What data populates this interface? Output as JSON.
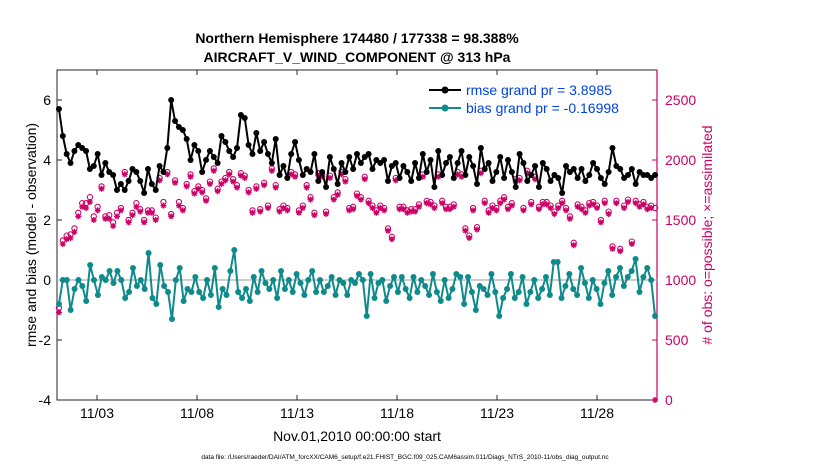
{
  "chart_data": {
    "type": "line",
    "title": "Northern Hemisphere 174480 / 177338 = 98.388%",
    "subtitle": "AIRCRAFT_V_WIND_COMPONENT @ 313 hPa",
    "xlabel": "Nov.01,2010 00:00:00 start",
    "ylabel_left": "rmse and bias (model - observation)",
    "ylabel_right": "# of obs: o=possible; ×=assimilated",
    "footer": "data file: /Users/raeder/DAI/ATM_forcXX/CAM6_setup/f.e21.FHIST_BGC.f09_025.CAM6assim.011/Diags_NTrS_2010-11/obs_diag_output.nc",
    "x_tick_labels": [
      "11/03",
      "11/08",
      "11/13",
      "11/18",
      "11/23",
      "11/28"
    ],
    "y_left_tick_labels": [
      "-4",
      "-2",
      "0",
      "2",
      "4",
      "6"
    ],
    "y_right_tick_labels": [
      "0",
      "500",
      "1000",
      "1500",
      "2000",
      "2500"
    ],
    "xlim_days": [
      0,
      30
    ],
    "ylim_left": [
      -4,
      7
    ],
    "ylim_right": [
      0,
      2750
    ],
    "legend_location": "top-right",
    "series": [
      {
        "name": "rmse grand pr = 3.8985",
        "color": "#000000",
        "axis": "left",
        "values": [
          5.7,
          4.8,
          4.2,
          3.9,
          4.3,
          4.5,
          4.4,
          4.3,
          3.7,
          3.8,
          4.2,
          3.5,
          3.9,
          3.6,
          3.5,
          3.0,
          3.2,
          3.0,
          3.3,
          3.7,
          3.6,
          3.3,
          2.9,
          3.7,
          3.2,
          3.0,
          3.8,
          3.6,
          4.4,
          6.0,
          5.3,
          5.1,
          5.0,
          4.7,
          4.0,
          4.5,
          4.3,
          3.6,
          4.0,
          4.3,
          4.1,
          3.9,
          4.8,
          4.6,
          4.3,
          4.1,
          4.4,
          5.5,
          5.4,
          4.5,
          4.2,
          4.9,
          4.3,
          4.6,
          4.2,
          3.9,
          4.7,
          3.5,
          3.8,
          3.4,
          4.2,
          4.6,
          4.0,
          3.5,
          3.7,
          3.6,
          4.2,
          3.3,
          3.6,
          3.1,
          4.1,
          3.7,
          3.2,
          3.9,
          3.6,
          4.1,
          3.7,
          4.2,
          3.9,
          4.1,
          4.2,
          3.7,
          4.0,
          3.9,
          4.0,
          3.3,
          3.8,
          3.9,
          3.4,
          3.8,
          3.6,
          3.3,
          3.9,
          3.4,
          4.2,
          3.6,
          4.0,
          3.1,
          4.3,
          3.5,
          3.9,
          4.1,
          3.4,
          3.9,
          4.3,
          3.5,
          4.1,
          3.8,
          3.2,
          4.4,
          3.7,
          3.9,
          3.3,
          3.6,
          4.1,
          3.4,
          4.0,
          3.6,
          3.1,
          4.2,
          3.9,
          3.3,
          3.5,
          3.8,
          3.1,
          3.9,
          3.7,
          3.3,
          3.5,
          3.4,
          2.9,
          3.8,
          3.6,
          3.7,
          3.4,
          3.7,
          3.3,
          3.5,
          3.9,
          3.7,
          3.4,
          3.2,
          3.6,
          4.4,
          3.8,
          3.7,
          3.4,
          3.5,
          3.7,
          3.2,
          3.6,
          3.5,
          3.5,
          3.4,
          3.5
        ]
      },
      {
        "name": "bias grand pr = -0.16998",
        "color": "#0f8a8a",
        "axis": "left",
        "values": [
          -0.8,
          0.0,
          0.0,
          -1.0,
          -0.3,
          0.0,
          -0.2,
          -0.7,
          0.5,
          0.0,
          -0.5,
          0.1,
          0.0,
          0.3,
          -0.1,
          0.3,
          0.0,
          -0.6,
          -0.4,
          0.4,
          -0.2,
          0.0,
          -0.3,
          0.9,
          -0.6,
          -0.8,
          0.5,
          -0.2,
          -0.4,
          -1.3,
          0.0,
          0.4,
          -0.7,
          -0.3,
          -0.4,
          0.1,
          -0.4,
          -0.6,
          0.0,
          -0.5,
          0.4,
          -0.9,
          -0.3,
          -0.5,
          0.3,
          1.0,
          -0.4,
          -0.6,
          -0.3,
          -0.7,
          0.1,
          -0.4,
          0.3,
          -0.1,
          -0.3,
          0.0,
          -0.6,
          0.3,
          -0.3,
          0.0,
          -0.4,
          0.2,
          -0.1,
          -0.5,
          0.0,
          0.3,
          -0.4,
          0.0,
          -0.4,
          -0.2,
          0.1,
          -0.5,
          0.0,
          -0.1,
          -0.5,
          0.0,
          -0.1,
          0.2,
          0.0,
          -1.2,
          0.2,
          -0.6,
          -0.1,
          0.0,
          -0.7,
          -0.2,
          0.1,
          -0.4,
          0.1,
          -0.3,
          -0.6,
          0.1,
          -0.4,
          0.0,
          -0.2,
          -0.5,
          0.2,
          -0.4,
          -0.7,
          0.0,
          -0.6,
          -0.3,
          0.2,
          0.1,
          -0.8,
          0.1,
          -0.4,
          -1.0,
          -0.2,
          -0.3,
          -0.5,
          0.2,
          -0.4,
          -1.2,
          -0.6,
          -0.3,
          0.2,
          -0.6,
          -0.4,
          0.1,
          -0.8,
          -0.4,
          0.0,
          -0.6,
          -0.3,
          0.1,
          -0.5,
          0.6,
          0.6,
          -0.6,
          -0.2,
          0.2,
          -0.3,
          -0.5,
          0.4,
          -0.1,
          -0.6,
          0.0,
          -0.3,
          -0.8,
          -0.1,
          0.3,
          -0.5,
          0.1,
          0.4,
          -0.2,
          0.1,
          0.3,
          0.7,
          -0.4,
          0.1,
          0.4,
          0.0,
          -1.2
        ]
      },
      {
        "name": "# of obs possible",
        "color": "#cc0066",
        "axis": "right",
        "marker": "o",
        "values": [
          770,
          1330,
          1370,
          1380,
          1430,
          1560,
          1640,
          1640,
          1690,
          1530,
          1610,
          1780,
          1530,
          1540,
          1480,
          1560,
          1600,
          1900,
          1500,
          1560,
          1640,
          1590,
          1500,
          1580,
          1580,
          1520,
          1850,
          1650,
          1900,
          1550,
          1830,
          1650,
          1600,
          1800,
          1880,
          1740,
          1780,
          1750,
          1680,
          1820,
          1930,
          1760,
          1820,
          1850,
          1900,
          1840,
          1790,
          1890,
          1870,
          1750,
          1580,
          1780,
          1590,
          1810,
          1620,
          1930,
          1790,
          1590,
          1620,
          1600,
          1900,
          1880,
          1580,
          1620,
          1790,
          1690,
          1560,
          1890,
          1880,
          1570,
          1870,
          1690,
          1730,
          1900,
          1840,
          1600,
          1610,
          1720,
          1690,
          1860,
          1660,
          1620,
          1580,
          1620,
          1600,
          1430,
          1360,
          1850,
          1610,
          1610,
          1580,
          1590,
          1590,
          1630,
          1880,
          1660,
          1650,
          1620,
          1880,
          1660,
          1610,
          1610,
          1630,
          1900,
          1880,
          1430,
          1370,
          1600,
          1440,
          1910,
          1660,
          1580,
          1620,
          1600,
          1660,
          1690,
          1610,
          1640,
          1840,
          1850,
          1600,
          1910,
          1650,
          1860,
          1610,
          1650,
          1650,
          1620,
          1570,
          1620,
          1660,
          1600,
          1530,
          1310,
          1630,
          1610,
          1580,
          1640,
          1650,
          1620,
          1500,
          1660,
          1570,
          1280,
          1660,
          1260,
          1620,
          1670,
          1320,
          1660,
          1630,
          1650,
          1610,
          1620,
          1600
        ]
      },
      {
        "name": "# of obs assimilated",
        "color": "#cc0066",
        "axis": "right",
        "marker": "x",
        "values": [
          730,
          1300,
          1340,
          1350,
          1400,
          1530,
          1610,
          1600,
          1650,
          1500,
          1580,
          1760,
          1510,
          1510,
          1450,
          1530,
          1580,
          1880,
          1480,
          1540,
          1610,
          1570,
          1480,
          1560,
          1560,
          1500,
          1830,
          1620,
          1880,
          1530,
          1810,
          1620,
          1580,
          1780,
          1860,
          1720,
          1760,
          1730,
          1660,
          1800,
          1910,
          1740,
          1800,
          1830,
          1880,
          1820,
          1770,
          1870,
          1850,
          1730,
          1560,
          1760,
          1570,
          1790,
          1600,
          1910,
          1770,
          1570,
          1600,
          1580,
          1880,
          1860,
          1560,
          1600,
          1770,
          1670,
          1540,
          1870,
          1860,
          1550,
          1850,
          1670,
          1710,
          1880,
          1820,
          1580,
          1590,
          1700,
          1670,
          1840,
          1640,
          1600,
          1560,
          1600,
          1580,
          1410,
          1340,
          1830,
          1590,
          1590,
          1560,
          1570,
          1570,
          1610,
          1860,
          1640,
          1630,
          1600,
          1860,
          1640,
          1590,
          1590,
          1610,
          1880,
          1860,
          1410,
          1350,
          1580,
          1420,
          1890,
          1640,
          1560,
          1600,
          1580,
          1640,
          1670,
          1590,
          1620,
          1820,
          1830,
          1580,
          1890,
          1630,
          1840,
          1590,
          1630,
          1630,
          1600,
          1550,
          1600,
          1640,
          1580,
          1510,
          1290,
          1610,
          1590,
          1560,
          1620,
          1630,
          1600,
          1480,
          1640,
          1550,
          1260,
          1640,
          1240,
          1600,
          1650,
          1300,
          1640,
          1610,
          1630,
          1590,
          1600,
          0
        ]
      }
    ]
  }
}
